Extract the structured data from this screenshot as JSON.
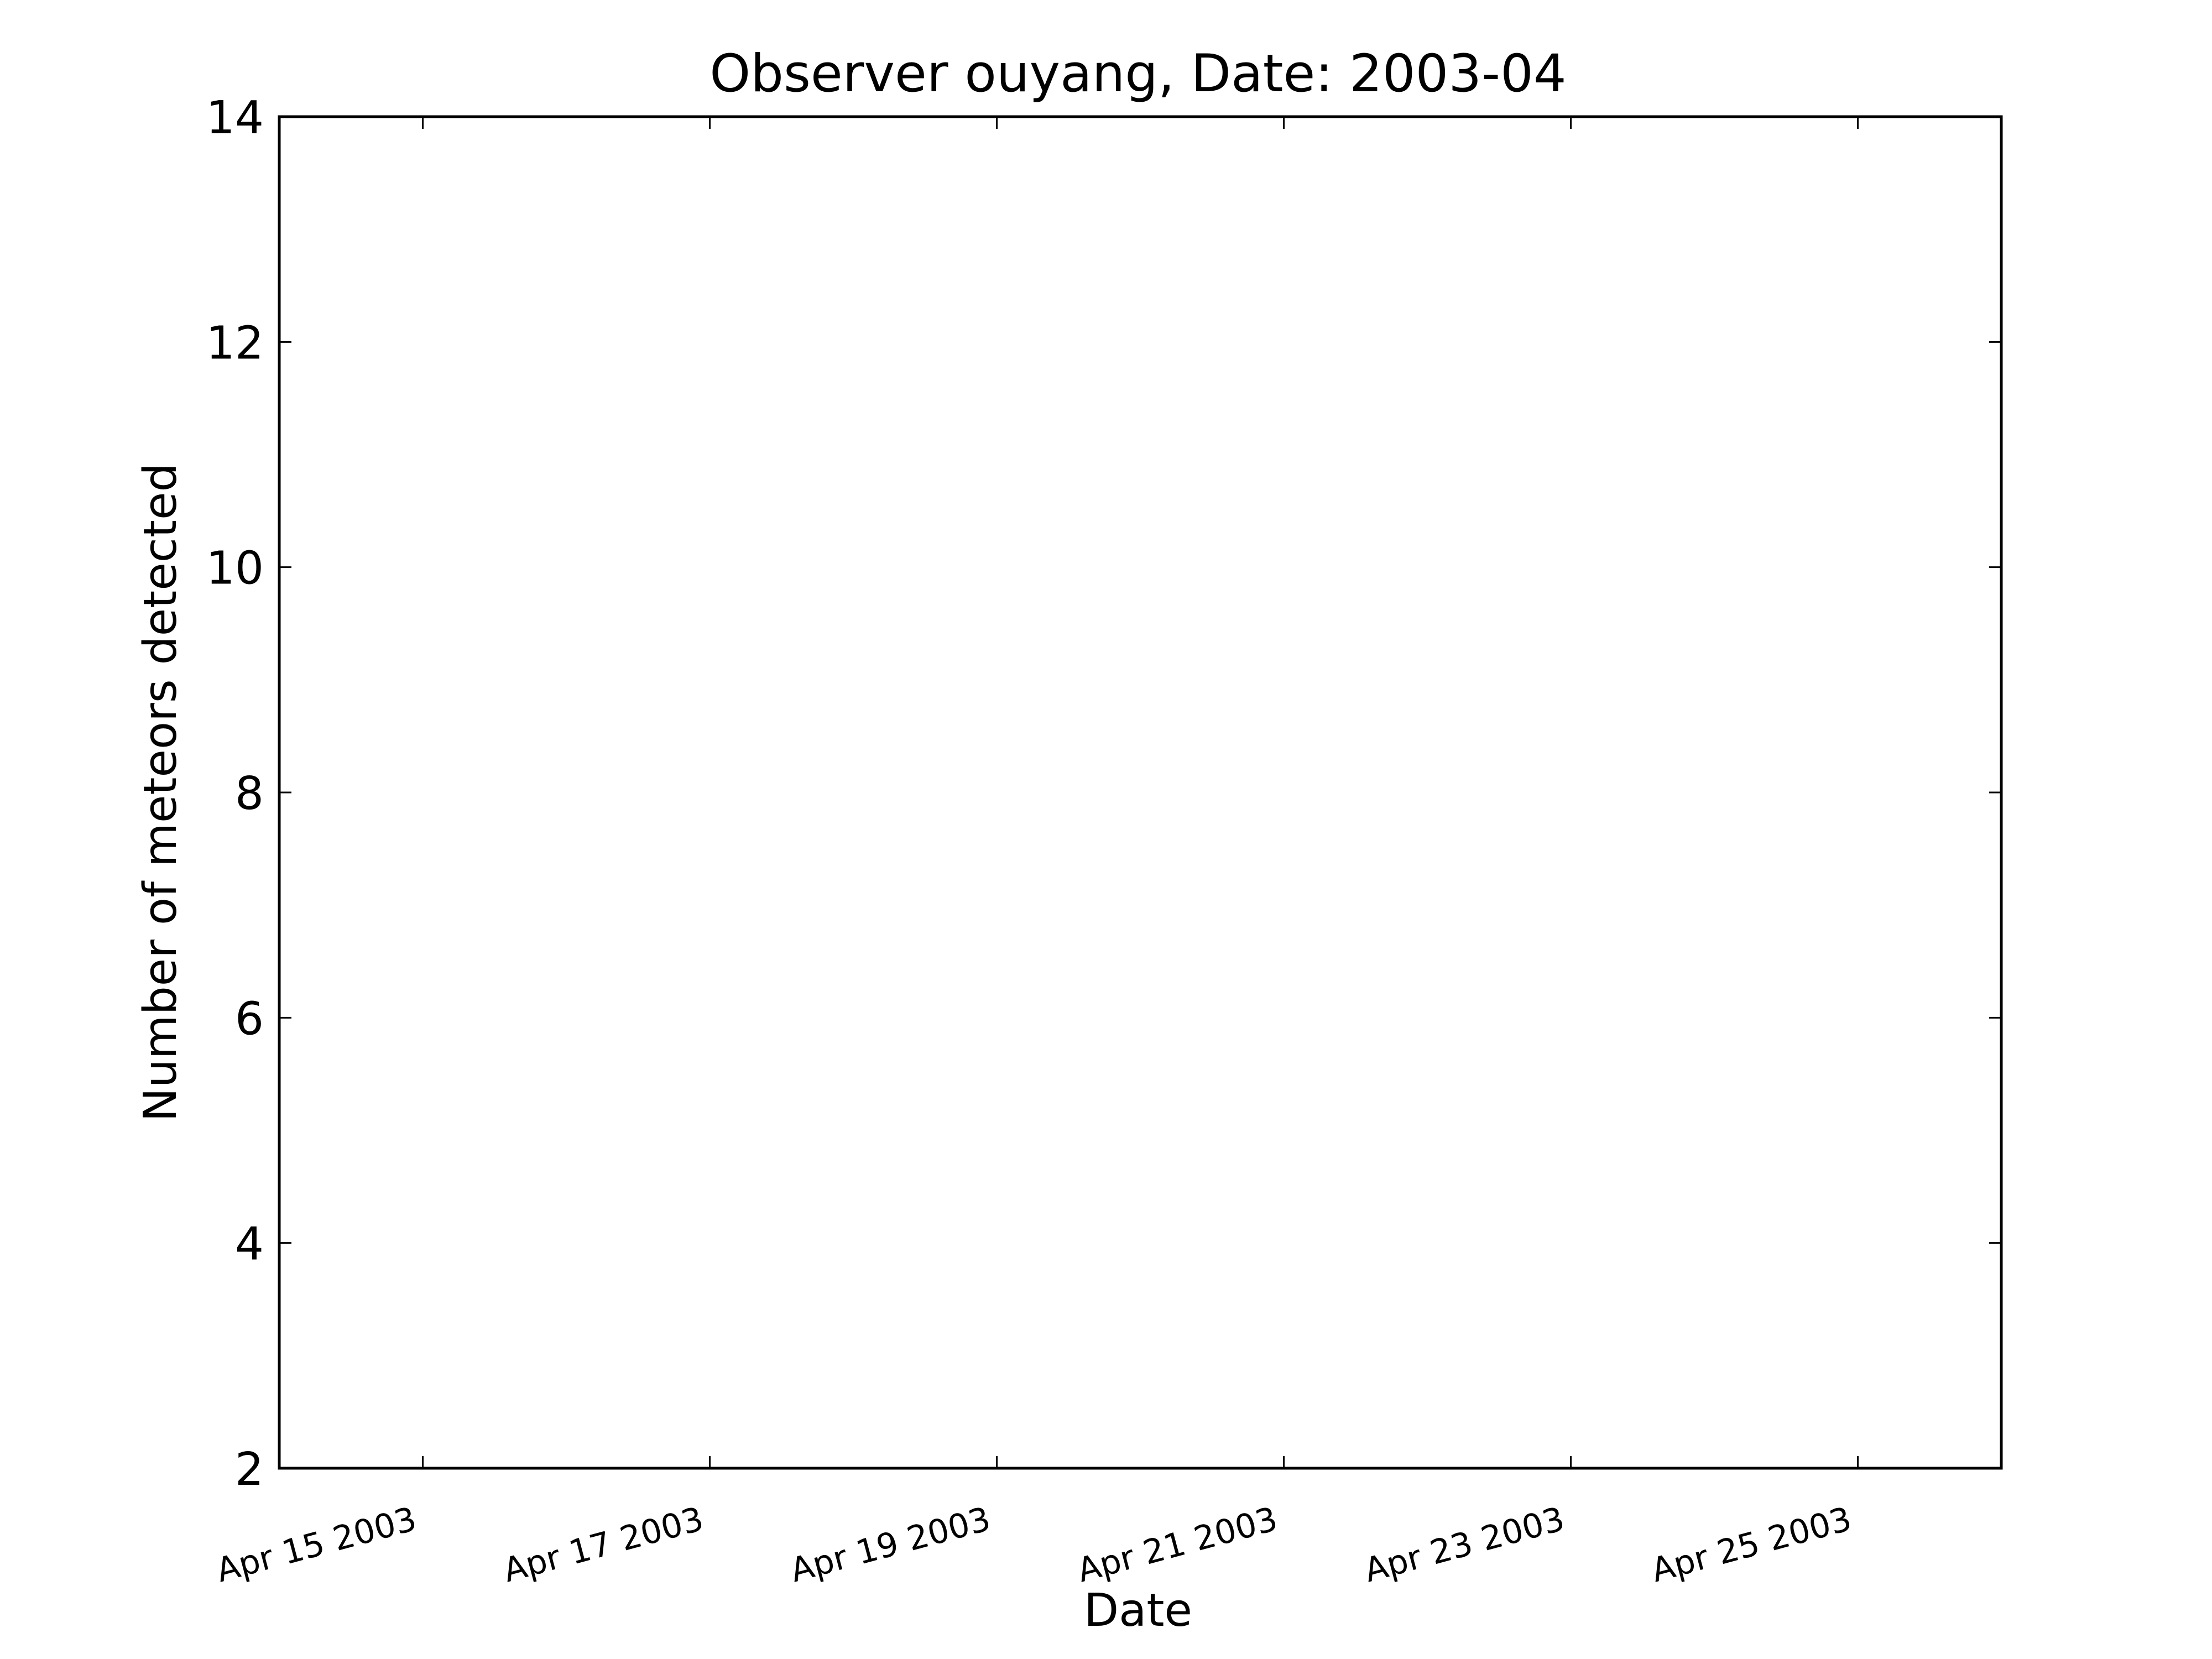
{
  "chart_data": {
    "type": "scatter",
    "title": "Observer ouyang, Date: 2003-04",
    "xlabel": "Date",
    "ylabel": "Number of meteors detected",
    "x_tick_labels": [
      "Apr 15 2003",
      "Apr 17 2003",
      "Apr 19 2003",
      "Apr 21 2003",
      "Apr 23 2003",
      "Apr 25 2003"
    ],
    "y_tick_labels": [
      "2",
      "4",
      "6",
      "8",
      "10",
      "12",
      "14"
    ],
    "xlim": [
      "2003-04-14",
      "2003-04-26"
    ],
    "ylim": [
      2,
      14
    ],
    "x_tick_dates": [
      "2003-04-15",
      "2003-04-17",
      "2003-04-19",
      "2003-04-21",
      "2003-04-23",
      "2003-04-25"
    ],
    "y_ticks": [
      2,
      4,
      6,
      8,
      10,
      12,
      14
    ],
    "grid": false,
    "series": []
  }
}
